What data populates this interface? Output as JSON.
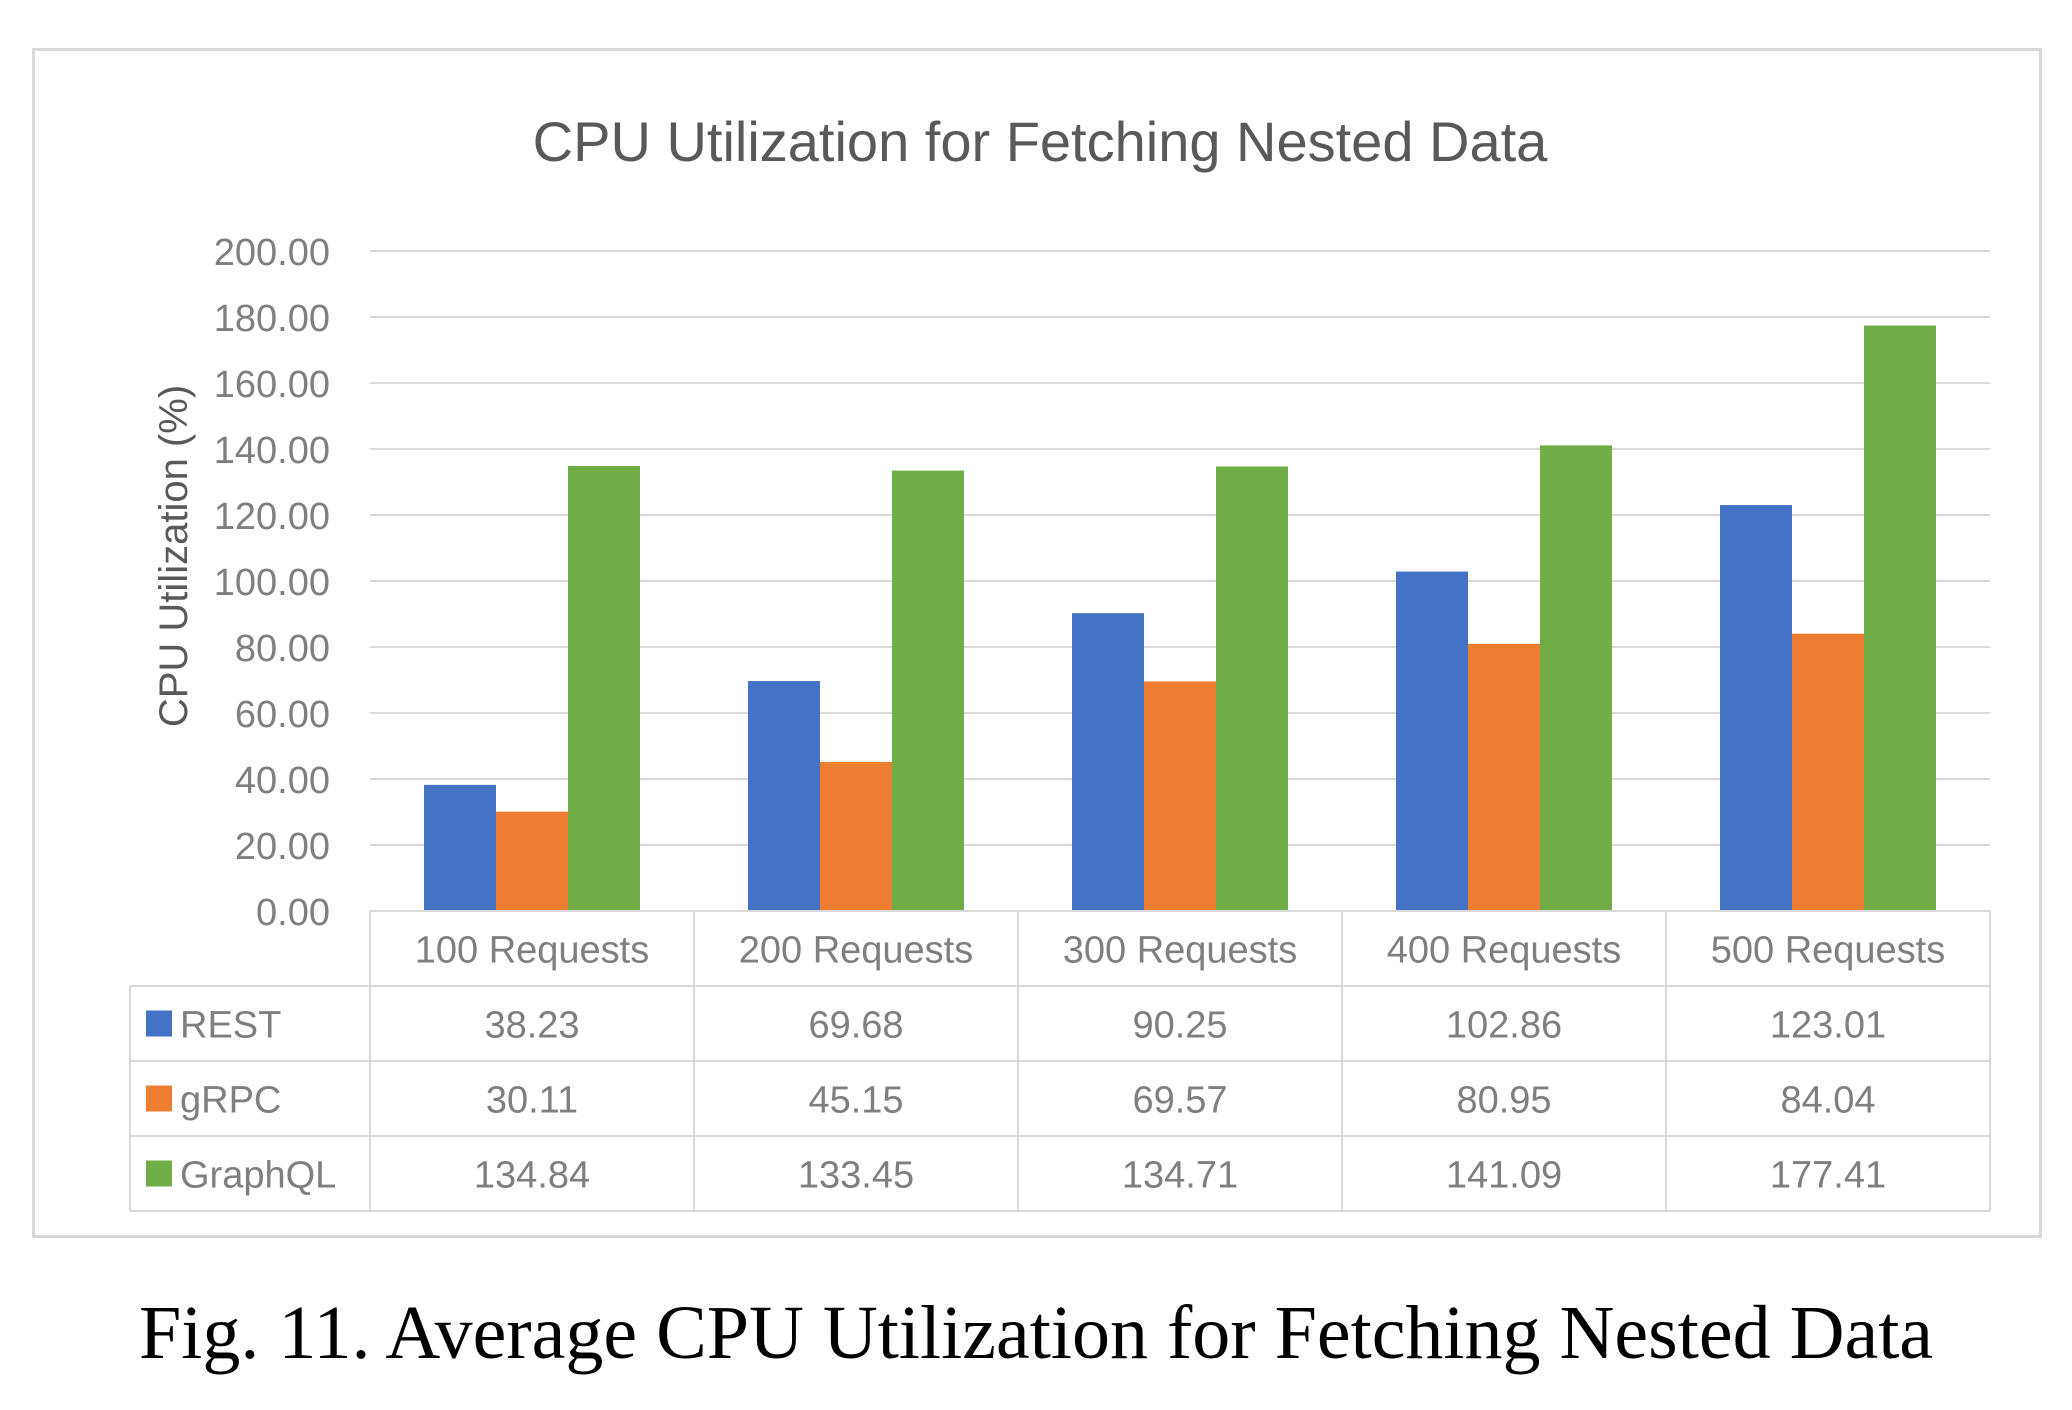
{
  "chart_data": {
    "type": "bar",
    "title": "CPU Utilization for Fetching Nested Data",
    "xlabel": "",
    "ylabel": "CPU Utilization (%)",
    "ylim": [
      0,
      200
    ],
    "yticks": [
      "0.00",
      "20.00",
      "40.00",
      "60.00",
      "80.00",
      "100.00",
      "120.00",
      "140.00",
      "160.00",
      "180.00",
      "200.00"
    ],
    "grid": true,
    "legend": "data-table",
    "categories": [
      "100 Requests",
      "200 Requests",
      "300 Requests",
      "400 Requests",
      "500 Requests"
    ],
    "series": [
      {
        "name": "REST",
        "color": "#4472c4",
        "values": [
          38.23,
          69.68,
          90.25,
          102.86,
          123.01
        ],
        "labels": [
          "38.23",
          "69.68",
          "90.25",
          "102.86",
          "123.01"
        ]
      },
      {
        "name": "gRPC",
        "color": "#ed7d31",
        "values": [
          30.11,
          45.15,
          69.57,
          80.95,
          84.04
        ],
        "labels": [
          "30.11",
          "45.15",
          "69.57",
          "80.95",
          "84.04"
        ]
      },
      {
        "name": "GraphQL",
        "color": "#70ad47",
        "values": [
          134.84,
          133.45,
          134.71,
          141.09,
          177.41
        ],
        "labels": [
          "134.84",
          "133.45",
          "134.71",
          "141.09",
          "177.41"
        ]
      }
    ]
  },
  "caption": "Fig. 11. Average CPU Utilization for Fetching Nested Data"
}
